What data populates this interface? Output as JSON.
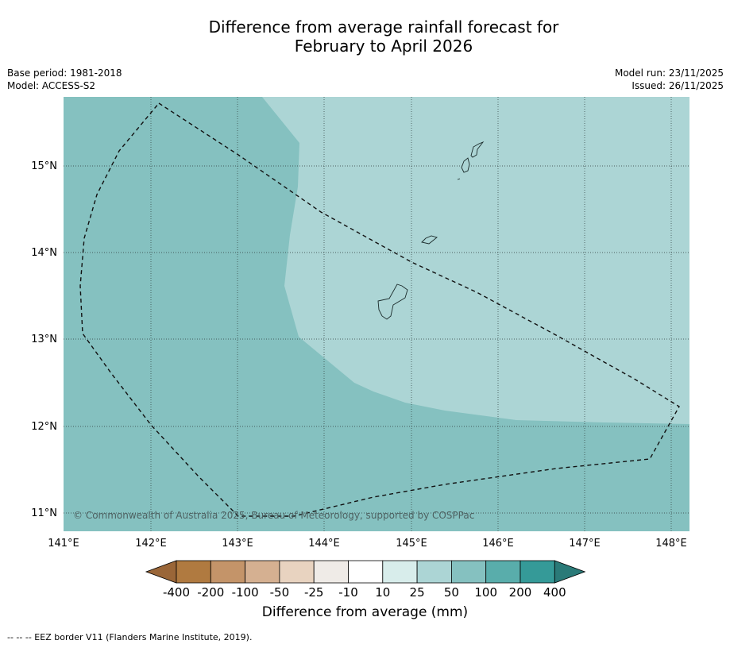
{
  "title_line1": "Difference from average rainfall forecast for",
  "title_line2": "February to April 2026",
  "meta": {
    "base_period": "Base period: 1981-2018",
    "model": "Model: ACCESS-S2",
    "model_run": "Model run: 23/11/2025",
    "issued": "Issued: 26/11/2025"
  },
  "map": {
    "lon_ticks": [
      "141°E",
      "142°E",
      "143°E",
      "144°E",
      "145°E",
      "146°E",
      "147°E",
      "148°E"
    ],
    "lat_ticks": [
      "15°N",
      "14°N",
      "13°N",
      "12°N",
      "11°N"
    ],
    "copyright": "© Commonwealth of Australia 2025, Bureau of Meteorology, supported by COSPPac",
    "region_colors": {
      "category_100_200": "#85c1c0",
      "category_50_100": "#acd5d5"
    }
  },
  "colorbar": {
    "labels": [
      "-400",
      "-200",
      "-100",
      "-50",
      "-25",
      "-10",
      "10",
      "25",
      "50",
      "100",
      "200",
      "400"
    ],
    "colors": [
      "#9a6638",
      "#b07a40",
      "#c49469",
      "#d5b091",
      "#e8d3c0",
      "#efebe7",
      "#ffffff",
      "#d8edeb",
      "#acd5d5",
      "#85c1c0",
      "#59adab",
      "#359a98",
      "#2a7a78"
    ],
    "title": "Difference from average (mm)"
  },
  "footnote": "--  --  -- EEZ border V11 (Flanders Marine Institute, 2019)."
}
